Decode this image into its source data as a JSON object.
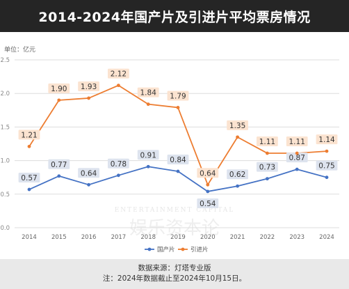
{
  "header": {
    "title": "2014-2024年国产片及引进片平均票房情况"
  },
  "footer": {
    "source": "数据来源：灯塔专业版",
    "note": "注：2024年数据截止至2024年10月15日。"
  },
  "watermark": {
    "text_en": "ENTERTAINMENT CAPITAL",
    "text_cn": "娱乐资本论"
  },
  "chart_data": {
    "type": "line",
    "unit_label": "单位：亿元",
    "categories": [
      "2014",
      "2015",
      "2016",
      "2017",
      "2018",
      "2019",
      "2020",
      "2021",
      "2022",
      "2023",
      "2024"
    ],
    "ylim": [
      0,
      2.5
    ],
    "yticks": [
      "0.0",
      "0.5",
      "1.0",
      "1.5",
      "2.0",
      "2.5"
    ],
    "grid": true,
    "legend_position": "bottom",
    "series": [
      {
        "name": "国产片",
        "color": "#4472c4",
        "values": [
          0.57,
          0.77,
          0.64,
          0.78,
          0.91,
          0.84,
          0.54,
          0.62,
          0.73,
          0.87,
          0.75
        ],
        "labels": [
          "0.57",
          "0.77",
          "0.64",
          "0.78",
          "0.91",
          "0.84",
          "0.54",
          "0.62",
          "0.73",
          "0.87",
          "0.75"
        ],
        "label_box": "#dde3ee",
        "label_pos": [
          "above",
          "above",
          "above",
          "above",
          "above",
          "above",
          "below",
          "above",
          "above",
          "above",
          "above"
        ]
      },
      {
        "name": "引进片",
        "color": "#ed7d31",
        "values": [
          1.21,
          1.9,
          1.93,
          2.12,
          1.84,
          1.79,
          0.64,
          1.35,
          1.11,
          1.11,
          1.14
        ],
        "labels": [
          "1.21",
          "1.90",
          "1.93",
          "2.12",
          "1.84",
          "1.79",
          "0.64",
          "1.35",
          "1.11",
          "1.11",
          "1.14"
        ],
        "label_box": "#fbe3d0",
        "label_pos": [
          "above",
          "above",
          "above",
          "above",
          "above",
          "above",
          "above",
          "above",
          "above",
          "above",
          "above"
        ]
      }
    ]
  }
}
